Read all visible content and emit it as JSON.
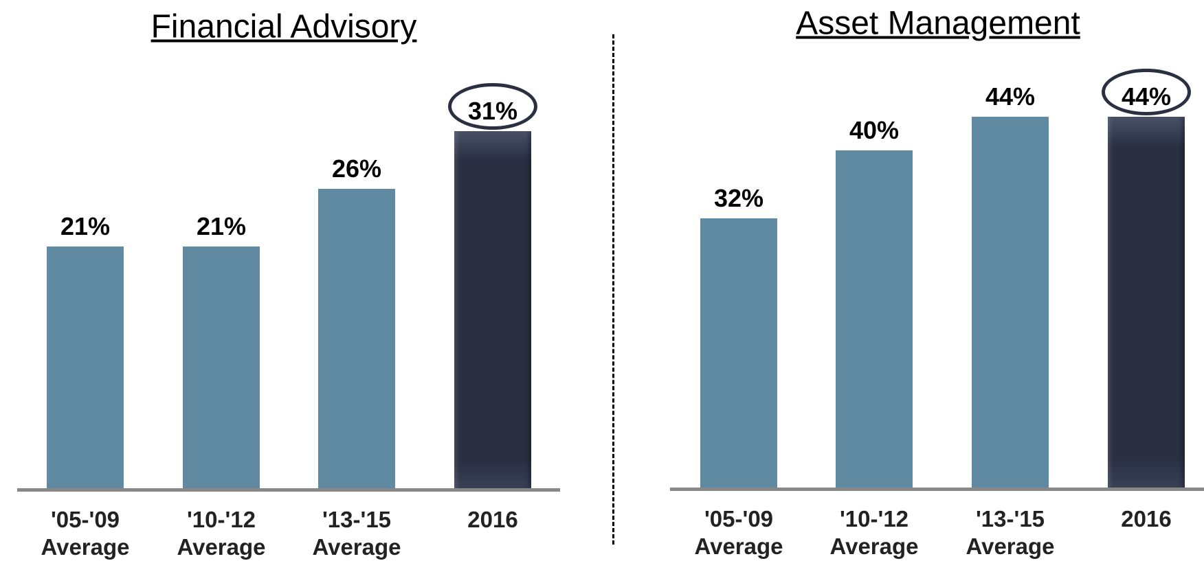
{
  "chart_data": [
    {
      "type": "bar",
      "title": "Financial Advisory",
      "categories": [
        "'05-'09 Average",
        "'10-'12 Average",
        "'13-'15 Average",
        "2016"
      ],
      "values": [
        21,
        21,
        26,
        31
      ],
      "value_labels": [
        "21%",
        "21%",
        "26%",
        "31%"
      ],
      "colors": [
        "#6089a2",
        "#6089a2",
        "#6089a2",
        "#2a3042"
      ],
      "ylim": [
        0,
        40
      ]
    },
    {
      "type": "bar",
      "title": "Asset Management",
      "categories": [
        "'05-'09 Average",
        "'10-'12 Average",
        "'13-'15 Average",
        "2016"
      ],
      "values": [
        32,
        40,
        44,
        44
      ],
      "value_labels": [
        "32%",
        "40%",
        "44%",
        "44%"
      ],
      "colors": [
        "#6089a2",
        "#6089a2",
        "#6089a2",
        "#2a3042"
      ],
      "ylim": [
        0,
        55
      ]
    }
  ]
}
